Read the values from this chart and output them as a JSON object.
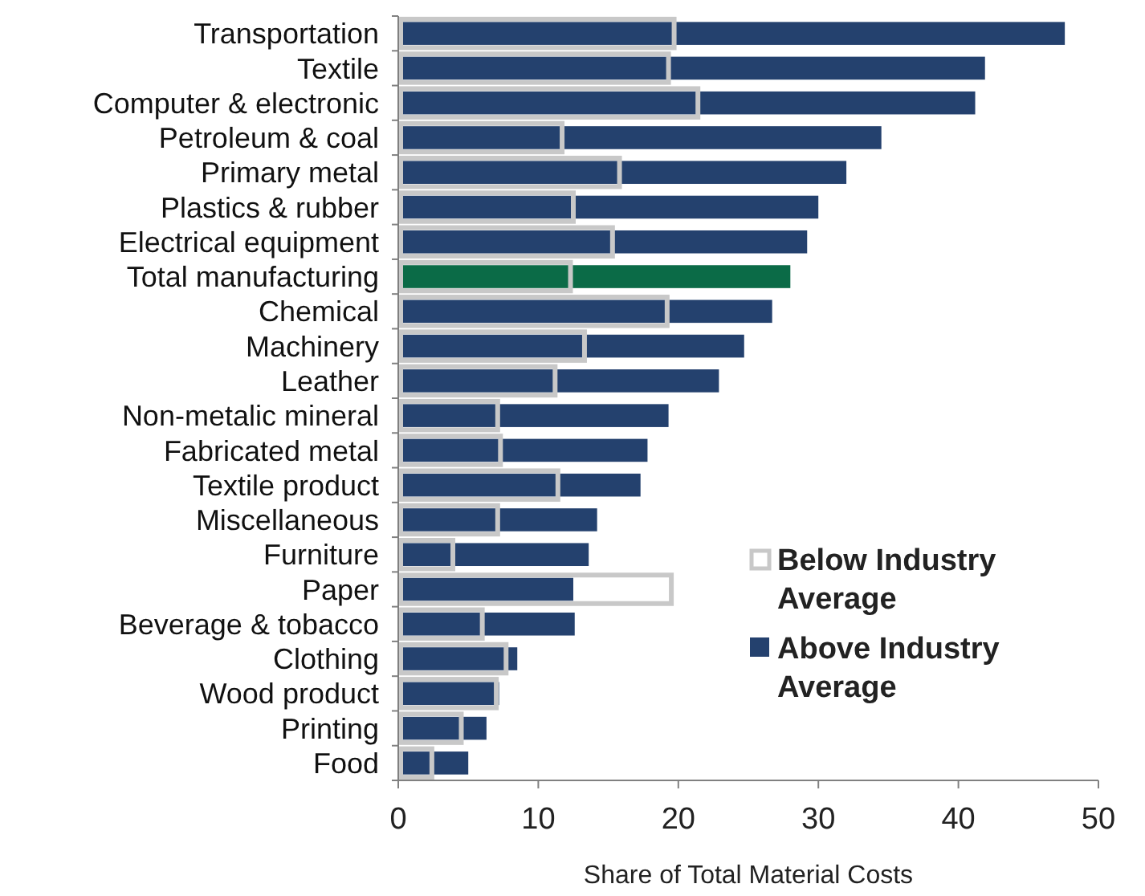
{
  "chart_data": {
    "type": "bar",
    "orientation": "horizontal",
    "xlabel": "Share of Total Material Costs",
    "categories": [
      "Transportation",
      "Textile",
      "Computer & electronic",
      "Petroleum & coal",
      "Primary metal",
      "Plastics & rubber",
      "Electrical equipment",
      "Total manufacturing",
      "Chemical",
      "Machinery",
      "Leather",
      "Non-metalic mineral",
      "Fabricated metal",
      "Textile product",
      "Miscellaneous",
      "Furniture",
      "Paper",
      "Beverage & tobacco",
      "Clothing",
      "Wood product",
      "Printing",
      "Food"
    ],
    "series": [
      {
        "name": "Above Industry Average",
        "color": "#24416e",
        "colors": [
          "#24416e",
          "#24416e",
          "#24416e",
          "#24416e",
          "#24416e",
          "#24416e",
          "#24416e",
          "#0b6b47",
          "#24416e",
          "#24416e",
          "#24416e",
          "#24416e",
          "#24416e",
          "#24416e",
          "#24416e",
          "#24416e",
          "#24416e",
          "#24416e",
          "#24416e",
          "#24416e",
          "#24416e",
          "#24416e"
        ],
        "values": [
          47.6,
          41.9,
          41.2,
          34.5,
          32.0,
          30.0,
          29.2,
          28.0,
          26.7,
          24.7,
          22.9,
          19.3,
          17.8,
          17.3,
          14.2,
          13.6,
          12.5,
          12.6,
          8.5,
          7.2,
          6.3,
          5.0
        ]
      },
      {
        "name": "Below Industry Average",
        "color": "#c8c8c8",
        "values": [
          19.7,
          19.3,
          21.4,
          11.7,
          15.8,
          12.5,
          15.3,
          12.3,
          19.2,
          13.3,
          11.2,
          7.1,
          7.3,
          11.4,
          7.1,
          3.9,
          19.5,
          6.0,
          7.7,
          7.0,
          4.5,
          2.4
        ]
      }
    ],
    "xlim": [
      0,
      50
    ],
    "xticks": [
      0,
      10,
      20,
      30,
      40,
      50
    ],
    "legend": "bottom right",
    "grid": false
  }
}
